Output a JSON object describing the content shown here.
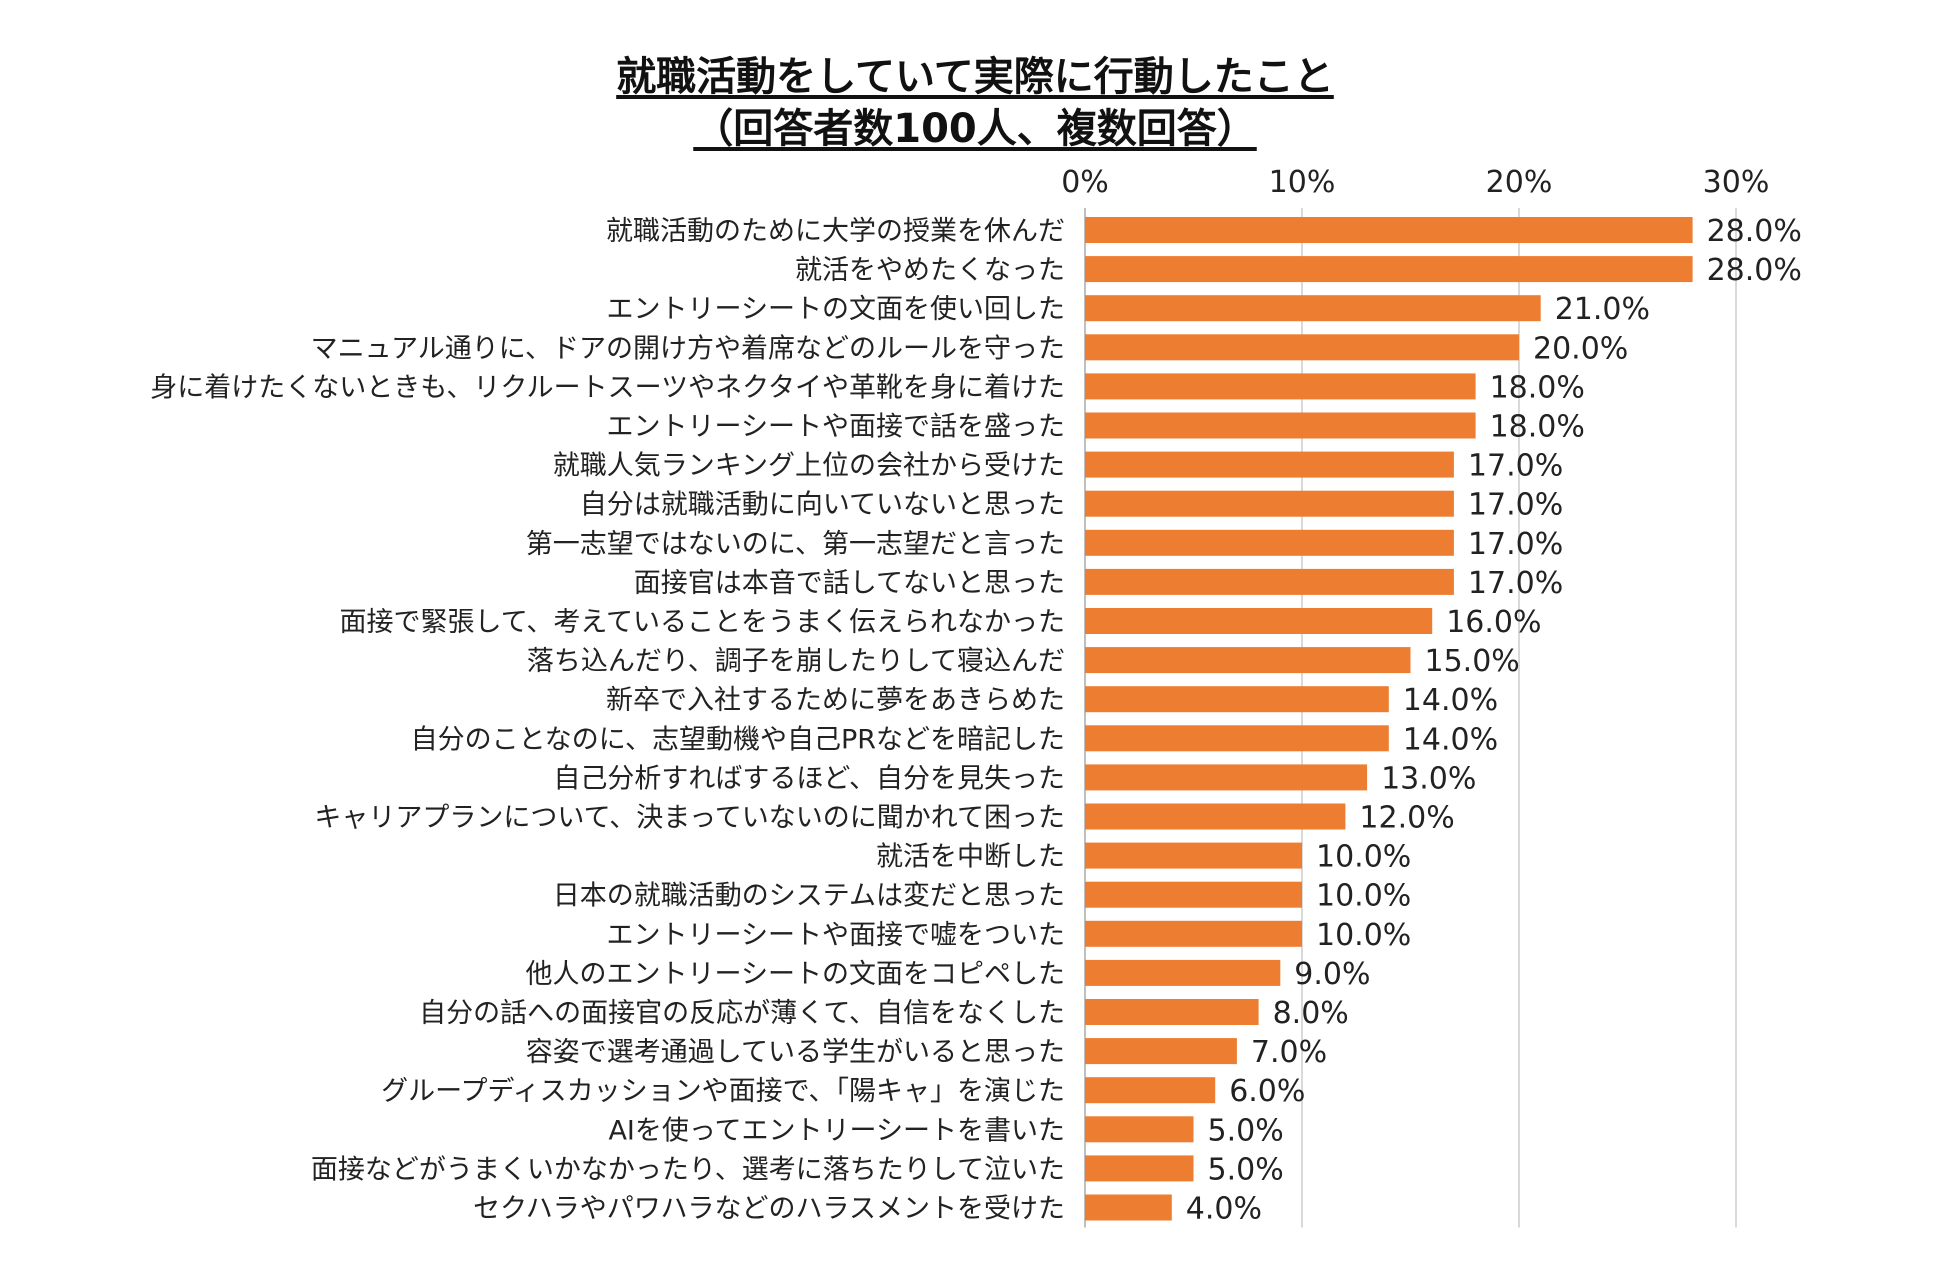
{
  "chart_data": {
    "type": "bar",
    "orientation": "horizontal",
    "title": "就職活動をしていて実際に行動したこと",
    "subtitle": "（回答者数100人、複数回答）",
    "x_ticks": [
      "0%",
      "10%",
      "20%",
      "30%"
    ],
    "xlim": [
      0,
      30
    ],
    "grid": true,
    "bar_color": "#ED7D31",
    "grid_color": "#D9D9D9",
    "categories": [
      "就職活動のために大学の授業を休んだ",
      "就活をやめたくなった",
      "エントリーシートの文面を使い回した",
      "マニュアル通りに、ドアの開け方や着席などのルールを守った",
      "身に着けたくないときも、リクルートスーツやネクタイや革靴を身に着けた",
      "エントリーシートや面接で話を盛った",
      "就職人気ランキング上位の会社から受けた",
      "自分は就職活動に向いていないと思った",
      "第一志望ではないのに、第一志望だと言った",
      "面接官は本音で話してないと思った",
      "面接で緊張して、考えていることをうまく伝えられなかった",
      "落ち込んだり、調子を崩したりして寝込んだ",
      "新卒で入社するために夢をあきらめた",
      "自分のことなのに、志望動機や自己PRなどを暗記した",
      "自己分析すればするほど、自分を見失った",
      "キャリアプランについて、決まっていないのに聞かれて困った",
      "就活を中断した",
      "日本の就職活動のシステムは変だと思った",
      "エントリーシートや面接で嘘をついた",
      "他人のエントリーシートの文面をコピペした",
      "自分の話への面接官の反応が薄くて、自信をなくした",
      "容姿で選考通過している学生がいると思った",
      "グループディスカッションや面接で、「陽キャ」を演じた",
      "AIを使ってエントリーシートを書いた",
      "面接などがうまくいかなかったり、選考に落ちたりして泣いた",
      "セクハラやパワハラなどのハラスメントを受けた"
    ],
    "values": [
      28.0,
      28.0,
      21.0,
      20.0,
      18.0,
      18.0,
      17.0,
      17.0,
      17.0,
      17.0,
      16.0,
      15.0,
      14.0,
      14.0,
      13.0,
      12.0,
      10.0,
      10.0,
      10.0,
      9.0,
      8.0,
      7.0,
      6.0,
      5.0,
      5.0,
      4.0
    ],
    "value_labels": [
      "28.0%",
      "28.0%",
      "21.0%",
      "20.0%",
      "18.0%",
      "18.0%",
      "17.0%",
      "17.0%",
      "17.0%",
      "17.0%",
      "16.0%",
      "15.0%",
      "14.0%",
      "14.0%",
      "13.0%",
      "12.0%",
      "10.0%",
      "10.0%",
      "10.0%",
      "9.0%",
      "8.0%",
      "7.0%",
      "6.0%",
      "5.0%",
      "5.0%",
      "4.0%"
    ]
  }
}
